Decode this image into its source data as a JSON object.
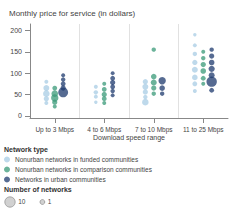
{
  "chart_data": {
    "type": "scatter",
    "title": "Monthly price for service (in dollars)",
    "xlabel": "Download speed range",
    "categories": [
      "Up to 3 Mbps",
      "4 to 6 Mbps",
      "7 to 10 Mbps",
      "11 to 25 Mbps"
    ],
    "ylim": [
      -5,
      215
    ],
    "yticks": [
      0,
      50,
      100,
      150,
      200
    ],
    "grid": false,
    "legend": "bottom",
    "legend_title": "Network type",
    "series": [
      {
        "name": "Nonurban networks in funded communities",
        "color": "#a8cce4",
        "x": [
          "Up to 3 Mbps",
          "Up to 3 Mbps",
          "Up to 3 Mbps",
          "Up to 3 Mbps",
          "Up to 3 Mbps",
          "4 to 6 Mbps",
          "4 to 6 Mbps",
          "4 to 6 Mbps",
          "4 to 6 Mbps",
          "7 to 10 Mbps",
          "7 to 10 Mbps",
          "7 to 10 Mbps",
          "7 to 10 Mbps",
          "7 to 10 Mbps",
          "11 to 25 Mbps",
          "11 to 25 Mbps",
          "11 to 25 Mbps",
          "11 to 25 Mbps",
          "11 to 25 Mbps",
          "11 to 25 Mbps",
          "11 to 25 Mbps",
          "11 to 25 Mbps"
        ],
        "values": [
          80,
          65,
          52,
          40,
          30,
          68,
          55,
          45,
          32,
          80,
          68,
          56,
          44,
          32,
          190,
          165,
          145,
          125,
          108,
          90,
          75,
          58
        ],
        "sizes": [
          8,
          18,
          22,
          14,
          8,
          8,
          10,
          8,
          6,
          14,
          18,
          14,
          10,
          22,
          6,
          8,
          10,
          14,
          18,
          16,
          12,
          8
        ]
      },
      {
        "name": "Nonurban networks in comparison communities",
        "color": "#3a9a78",
        "x": [
          "Up to 3 Mbps",
          "Up to 3 Mbps",
          "Up to 3 Mbps",
          "Up to 3 Mbps",
          "Up to 3 Mbps",
          "4 to 6 Mbps",
          "4 to 6 Mbps",
          "4 to 6 Mbps",
          "4 to 6 Mbps",
          "4 to 6 Mbps",
          "7 to 10 Mbps",
          "7 to 10 Mbps",
          "7 to 10 Mbps",
          "7 to 10 Mbps",
          "7 to 10 Mbps",
          "11 to 25 Mbps",
          "11 to 25 Mbps",
          "11 to 25 Mbps",
          "11 to 25 Mbps",
          "11 to 25 Mbps",
          "11 to 25 Mbps"
        ],
        "values": [
          65,
          52,
          42,
          32,
          22,
          75,
          62,
          50,
          40,
          30,
          155,
          92,
          78,
          65,
          52,
          150,
          135,
          120,
          105,
          88,
          75
        ],
        "sizes": [
          12,
          22,
          28,
          14,
          8,
          8,
          12,
          14,
          12,
          8,
          10,
          16,
          18,
          14,
          10,
          8,
          10,
          14,
          16,
          12,
          8
        ]
      },
      {
        "name": "Networks in urban communities",
        "color": "#1e3a6e",
        "x": [
          "Up to 3 Mbps",
          "Up to 3 Mbps",
          "Up to 3 Mbps",
          "Up to 3 Mbps",
          "Up to 3 Mbps",
          "4 to 6 Mbps",
          "4 to 6 Mbps",
          "4 to 6 Mbps",
          "4 to 6 Mbps",
          "4 to 6 Mbps",
          "4 to 6 Mbps",
          "7 to 10 Mbps",
          "7 to 10 Mbps",
          "7 to 10 Mbps",
          "11 to 25 Mbps",
          "11 to 25 Mbps",
          "11 to 25 Mbps",
          "11 to 25 Mbps",
          "11 to 25 Mbps",
          "11 to 25 Mbps",
          "11 to 25 Mbps"
        ],
        "values": [
          95,
          85,
          75,
          65,
          55,
          100,
          88,
          78,
          68,
          58,
          48,
          82,
          65,
          52,
          155,
          140,
          125,
          110,
          95,
          80,
          60
        ],
        "sizes": [
          8,
          10,
          12,
          14,
          50,
          8,
          12,
          14,
          12,
          10,
          8,
          28,
          16,
          10,
          10,
          14,
          16,
          20,
          18,
          55,
          12
        ]
      }
    ],
    "size_legend": {
      "title": "Number of networks",
      "values": [
        10,
        1
      ],
      "sizes": [
        55,
        12
      ]
    }
  }
}
